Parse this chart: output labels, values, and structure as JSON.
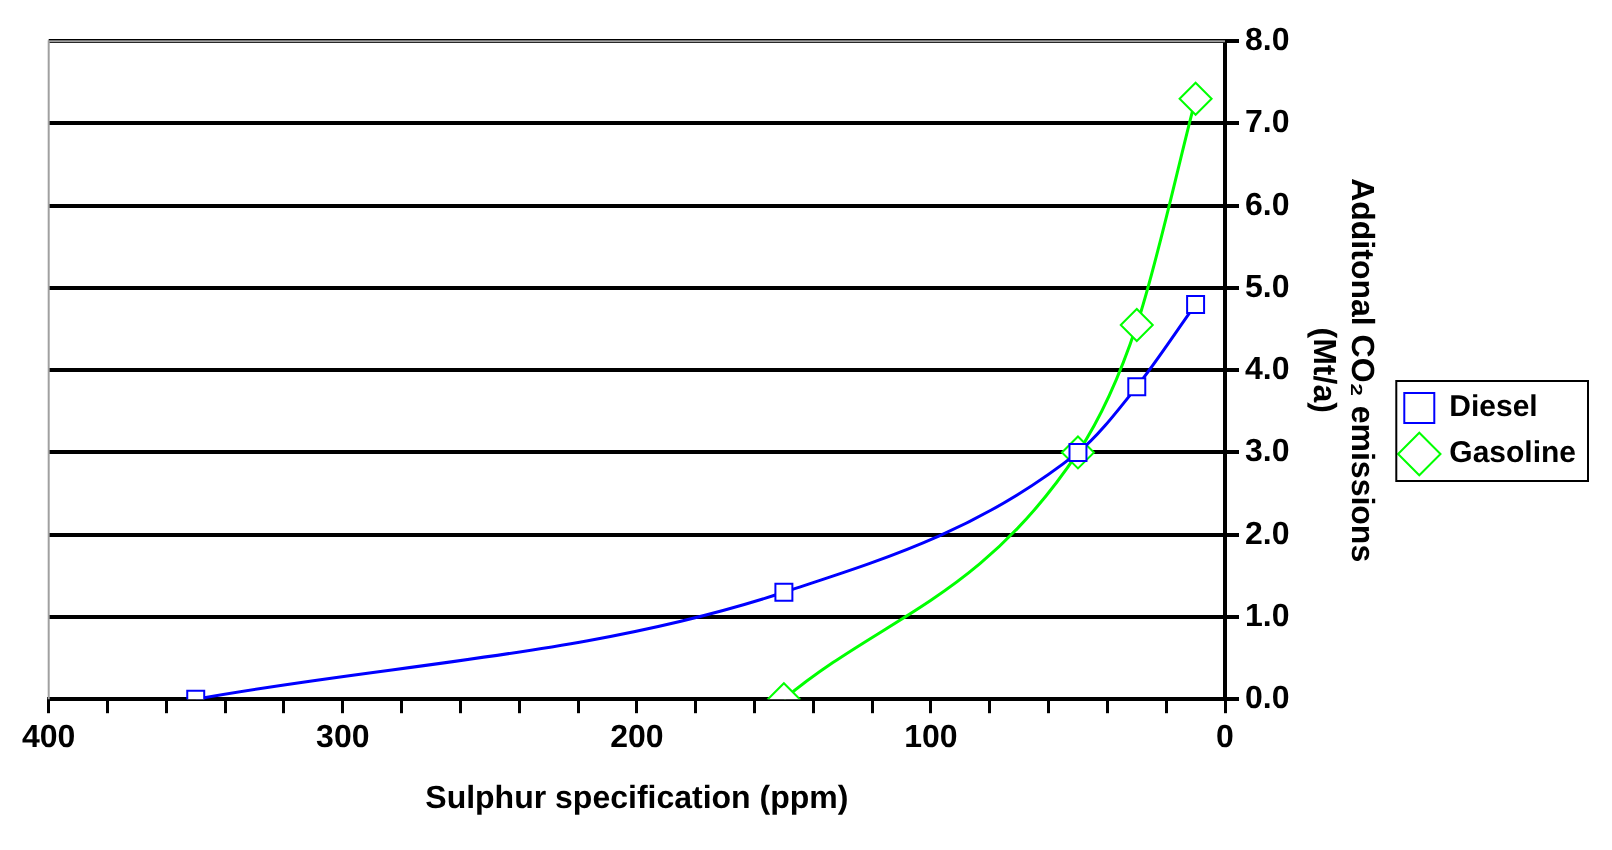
{
  "chart_data": {
    "type": "line",
    "xlabel": "Sulphur specification (ppm)",
    "ylabel": "Additonal CO₂ emissions (Mt/a)",
    "xlim": [
      400,
      0
    ],
    "xticks": [
      400,
      {
        "value": 380,
        "label": null
      },
      {
        "value": 360,
        "label": null
      },
      {
        "value": 340,
        "label": null
      },
      {
        "value": 320,
        "label": null
      },
      300,
      {
        "value": 280,
        "label": null
      },
      {
        "value": 260,
        "label": null
      },
      {
        "value": 240,
        "label": null
      },
      {
        "value": 220,
        "label": null
      },
      200,
      {
        "value": 180,
        "label": null
      },
      {
        "value": 160,
        "label": null
      },
      {
        "value": 140,
        "label": null
      },
      {
        "value": 120,
        "label": null
      },
      100,
      {
        "value": 80,
        "label": null
      },
      {
        "value": 60,
        "label": null
      },
      {
        "value": 40,
        "label": null
      },
      {
        "value": 20,
        "label": null
      },
      0
    ],
    "ylim": [
      0,
      8
    ],
    "yticks": [
      {
        "value": 0,
        "label": "0.0"
      },
      {
        "value": 1,
        "label": "1.0"
      },
      {
        "value": 2,
        "label": "2.0"
      },
      {
        "value": 3,
        "label": "3.0"
      },
      {
        "value": 4,
        "label": "4.0"
      },
      {
        "value": 5,
        "label": "5.0"
      },
      {
        "value": 6,
        "label": "6.0"
      },
      {
        "value": 7,
        "label": "7.0"
      },
      {
        "value": 8,
        "label": "8.0"
      }
    ],
    "grid": "y",
    "legend": "right",
    "series": [
      {
        "name": "Diesel",
        "color": "#0000ff",
        "marker": "square",
        "x": [
          350,
          150,
          50,
          30,
          10
        ],
        "values": [
          0,
          1.3,
          3.0,
          3.8,
          4.8
        ]
      },
      {
        "name": "Gasoline",
        "color": "#00ff00",
        "marker": "diamond",
        "x": [
          150,
          50,
          30,
          10
        ],
        "values": [
          0,
          3.0,
          4.55,
          7.3
        ]
      }
    ]
  }
}
